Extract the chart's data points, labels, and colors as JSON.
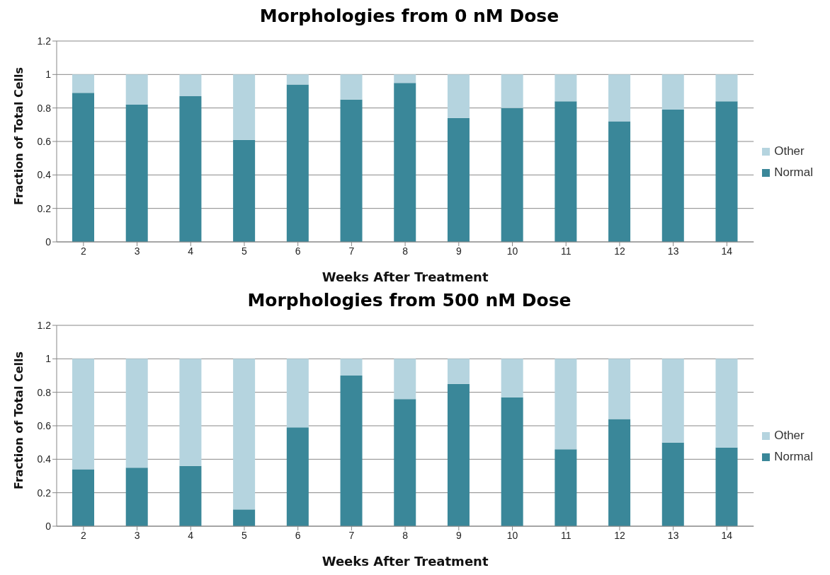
{
  "chart_data": [
    {
      "type": "bar",
      "title": "Morphologies  from 0 nM Dose",
      "xlabel": "Weeks  After Treatment",
      "ylabel": "Fraction of Total Cells",
      "categories": [
        "2",
        "3",
        "4",
        "5",
        "6",
        "7",
        "8",
        "9",
        "10",
        "11",
        "12",
        "13",
        "14"
      ],
      "stacked": true,
      "ylim": [
        0,
        1.2
      ],
      "yticks": [
        0,
        0.2,
        0.4,
        0.6,
        0.8,
        1,
        1.2
      ],
      "grid": "y",
      "legend": "right",
      "series": [
        {
          "name": "Normal",
          "color": "#3a8799",
          "values": [
            0.89,
            0.82,
            0.87,
            0.61,
            0.94,
            0.85,
            0.95,
            0.74,
            0.8,
            0.84,
            0.72,
            0.79,
            0.84
          ]
        },
        {
          "name": "Other",
          "color": "#b5d4df",
          "values": [
            0.11,
            0.18,
            0.13,
            0.39,
            0.06,
            0.15,
            0.05,
            0.26,
            0.2,
            0.16,
            0.28,
            0.21,
            0.16
          ]
        }
      ]
    },
    {
      "type": "bar",
      "title": "Morphologies  from 500 nM Dose",
      "xlabel": "Weeks  After Treatment",
      "ylabel": "Fraction of Total Cells",
      "categories": [
        "2",
        "3",
        "4",
        "5",
        "6",
        "7",
        "8",
        "9",
        "10",
        "11",
        "12",
        "13",
        "14"
      ],
      "stacked": true,
      "ylim": [
        0,
        1.2
      ],
      "yticks": [
        0,
        0.2,
        0.4,
        0.6,
        0.8,
        1,
        1.2
      ],
      "grid": "y",
      "legend": "right",
      "series": [
        {
          "name": "Normal",
          "color": "#3a8799",
          "values": [
            0.34,
            0.35,
            0.36,
            0.1,
            0.59,
            0.9,
            0.76,
            0.85,
            0.77,
            0.46,
            0.64,
            0.5,
            0.47
          ]
        },
        {
          "name": "Other",
          "color": "#b5d4df",
          "values": [
            0.66,
            0.65,
            0.64,
            0.9,
            0.41,
            0.1,
            0.24,
            0.15,
            0.23,
            0.54,
            0.36,
            0.5,
            0.53
          ]
        }
      ]
    }
  ]
}
